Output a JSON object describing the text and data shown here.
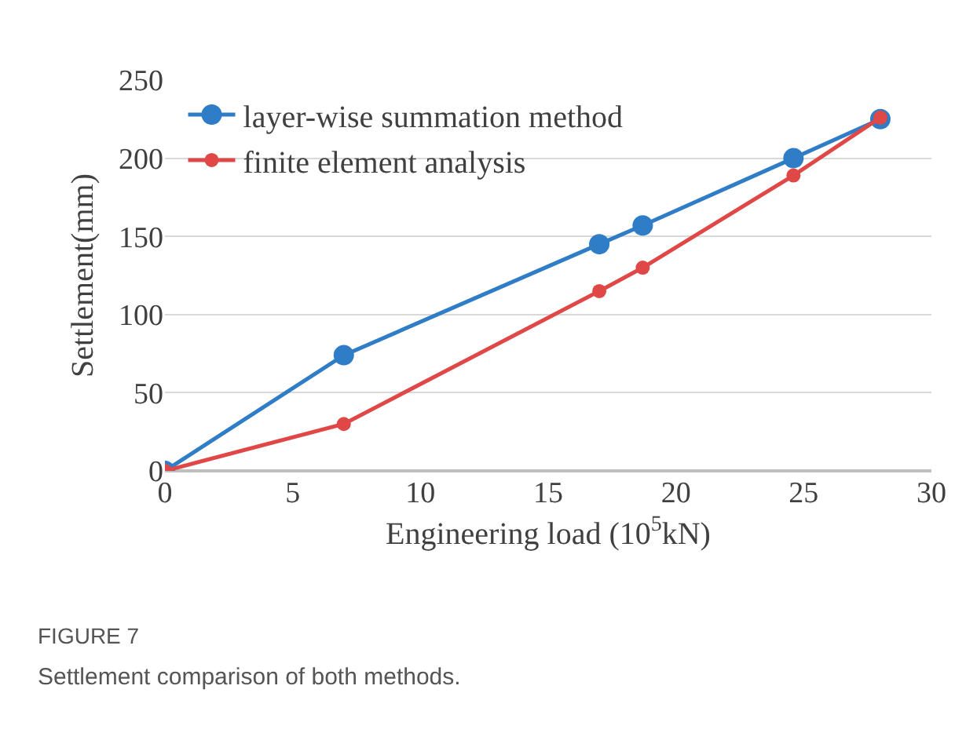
{
  "chart_data": {
    "type": "line",
    "xlabel": "Engineering load (10$^{5}$kN)",
    "ylabel": "Settlement(mm)",
    "x": [
      0,
      7,
      17,
      18.7,
      24.6,
      28
    ],
    "series": [
      {
        "name": "layer-wise summation method",
        "color": "#2e7dc6",
        "values": [
          0,
          74,
          145,
          157,
          200,
          225
        ]
      },
      {
        "name": "finite element analysis",
        "color": "#e04848",
        "values": [
          0,
          30,
          115,
          130,
          189,
          226
        ]
      }
    ],
    "xlim": [
      0,
      30
    ],
    "xticks": [
      0,
      5,
      10,
      15,
      20,
      25,
      30
    ],
    "ylim": [
      0,
      250
    ],
    "yticks": [
      0,
      50,
      100,
      150,
      200,
      250
    ],
    "grid": "y",
    "legend": "top left",
    "marker": "circle",
    "line_style": "solid",
    "annotations": [
      "FIGURE 7",
      "Settlement comparison of both methods."
    ]
  }
}
